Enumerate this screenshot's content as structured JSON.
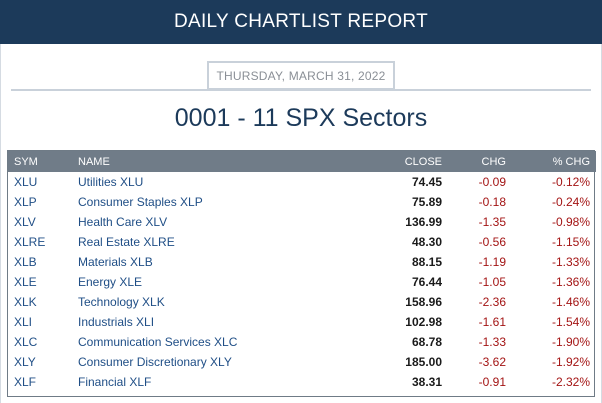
{
  "header": {
    "title": "DAILY CHARTLIST REPORT"
  },
  "report": {
    "date": "THURSDAY, MARCH 31, 2022",
    "title": "0001 - 11 SPX Sectors"
  },
  "colors": {
    "header_bg": "#1c3a5a",
    "table_header_bg": "#707c88",
    "link": "#1f4e86",
    "negative": "#a31414"
  },
  "table": {
    "columns": [
      "SYM",
      "NAME",
      "CLOSE",
      "CHG",
      "% CHG"
    ],
    "rows": [
      {
        "sym": "XLU",
        "name": "Utilities XLU",
        "close": "74.45",
        "chg": "-0.09",
        "pct": "-0.12%"
      },
      {
        "sym": "XLP",
        "name": "Consumer Staples XLP",
        "close": "75.89",
        "chg": "-0.18",
        "pct": "-0.24%"
      },
      {
        "sym": "XLV",
        "name": "Health Care XLV",
        "close": "136.99",
        "chg": "-1.35",
        "pct": "-0.98%"
      },
      {
        "sym": "XLRE",
        "name": "Real Estate XLRE",
        "close": "48.30",
        "chg": "-0.56",
        "pct": "-1.15%"
      },
      {
        "sym": "XLB",
        "name": "Materials XLB",
        "close": "88.15",
        "chg": "-1.19",
        "pct": "-1.33%"
      },
      {
        "sym": "XLE",
        "name": "Energy XLE",
        "close": "76.44",
        "chg": "-1.05",
        "pct": "-1.36%"
      },
      {
        "sym": "XLK",
        "name": "Technology XLK",
        "close": "158.96",
        "chg": "-2.36",
        "pct": "-1.46%"
      },
      {
        "sym": "XLI",
        "name": "Industrials XLI",
        "close": "102.98",
        "chg": "-1.61",
        "pct": "-1.54%"
      },
      {
        "sym": "XLC",
        "name": "Communication Services XLC",
        "close": "68.78",
        "chg": "-1.33",
        "pct": "-1.90%"
      },
      {
        "sym": "XLY",
        "name": "Consumer Discretionary XLY",
        "close": "185.00",
        "chg": "-3.62",
        "pct": "-1.92%"
      },
      {
        "sym": "XLF",
        "name": "Financial XLF",
        "close": "38.31",
        "chg": "-0.91",
        "pct": "-2.32%"
      }
    ]
  }
}
